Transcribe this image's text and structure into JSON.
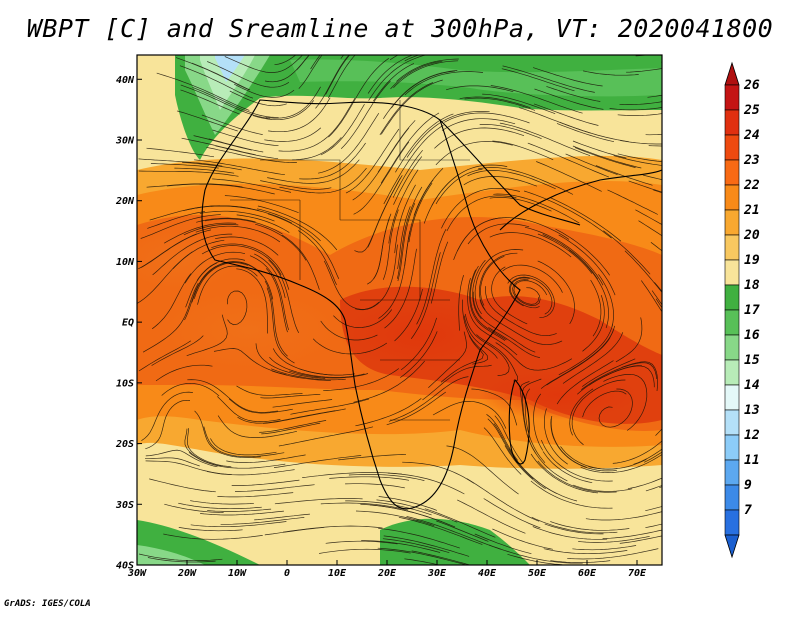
{
  "title": "WBPT [C] and Sreamline at 300hPa, VT: 2020041800",
  "credit": "GrADS: IGES/COLA",
  "map": {
    "lon_ticks": [
      "30W",
      "20W",
      "10W",
      "0",
      "10E",
      "20E",
      "30E",
      "40E",
      "50E",
      "60E",
      "70E"
    ],
    "lat_ticks": [
      "40N",
      "30N",
      "20N",
      "10N",
      "EQ",
      "10S",
      "20S",
      "30S",
      "40S"
    ],
    "lon_range": [
      -30,
      75
    ],
    "lat_range": [
      -40,
      44
    ]
  },
  "colorbar": {
    "levels": [
      "26",
      "25",
      "24",
      "23",
      "22",
      "21",
      "20",
      "19",
      "18",
      "17",
      "16",
      "15",
      "14",
      "13",
      "12",
      "11",
      "9",
      "7"
    ],
    "top_color": "#b01010",
    "bottom_color": "#1a5fd0",
    "colors": [
      "#c41414",
      "#e03010",
      "#ee4a10",
      "#f86a14",
      "#f88a18",
      "#f8a830",
      "#f8c860",
      "#f8e49a",
      "#40b040",
      "#58c058",
      "#88d888",
      "#b8ecb8",
      "#e4f8f8",
      "#b4e0f8",
      "#8cccf8",
      "#5ca8f0",
      "#3c8ae8",
      "#2870e0"
    ]
  }
}
